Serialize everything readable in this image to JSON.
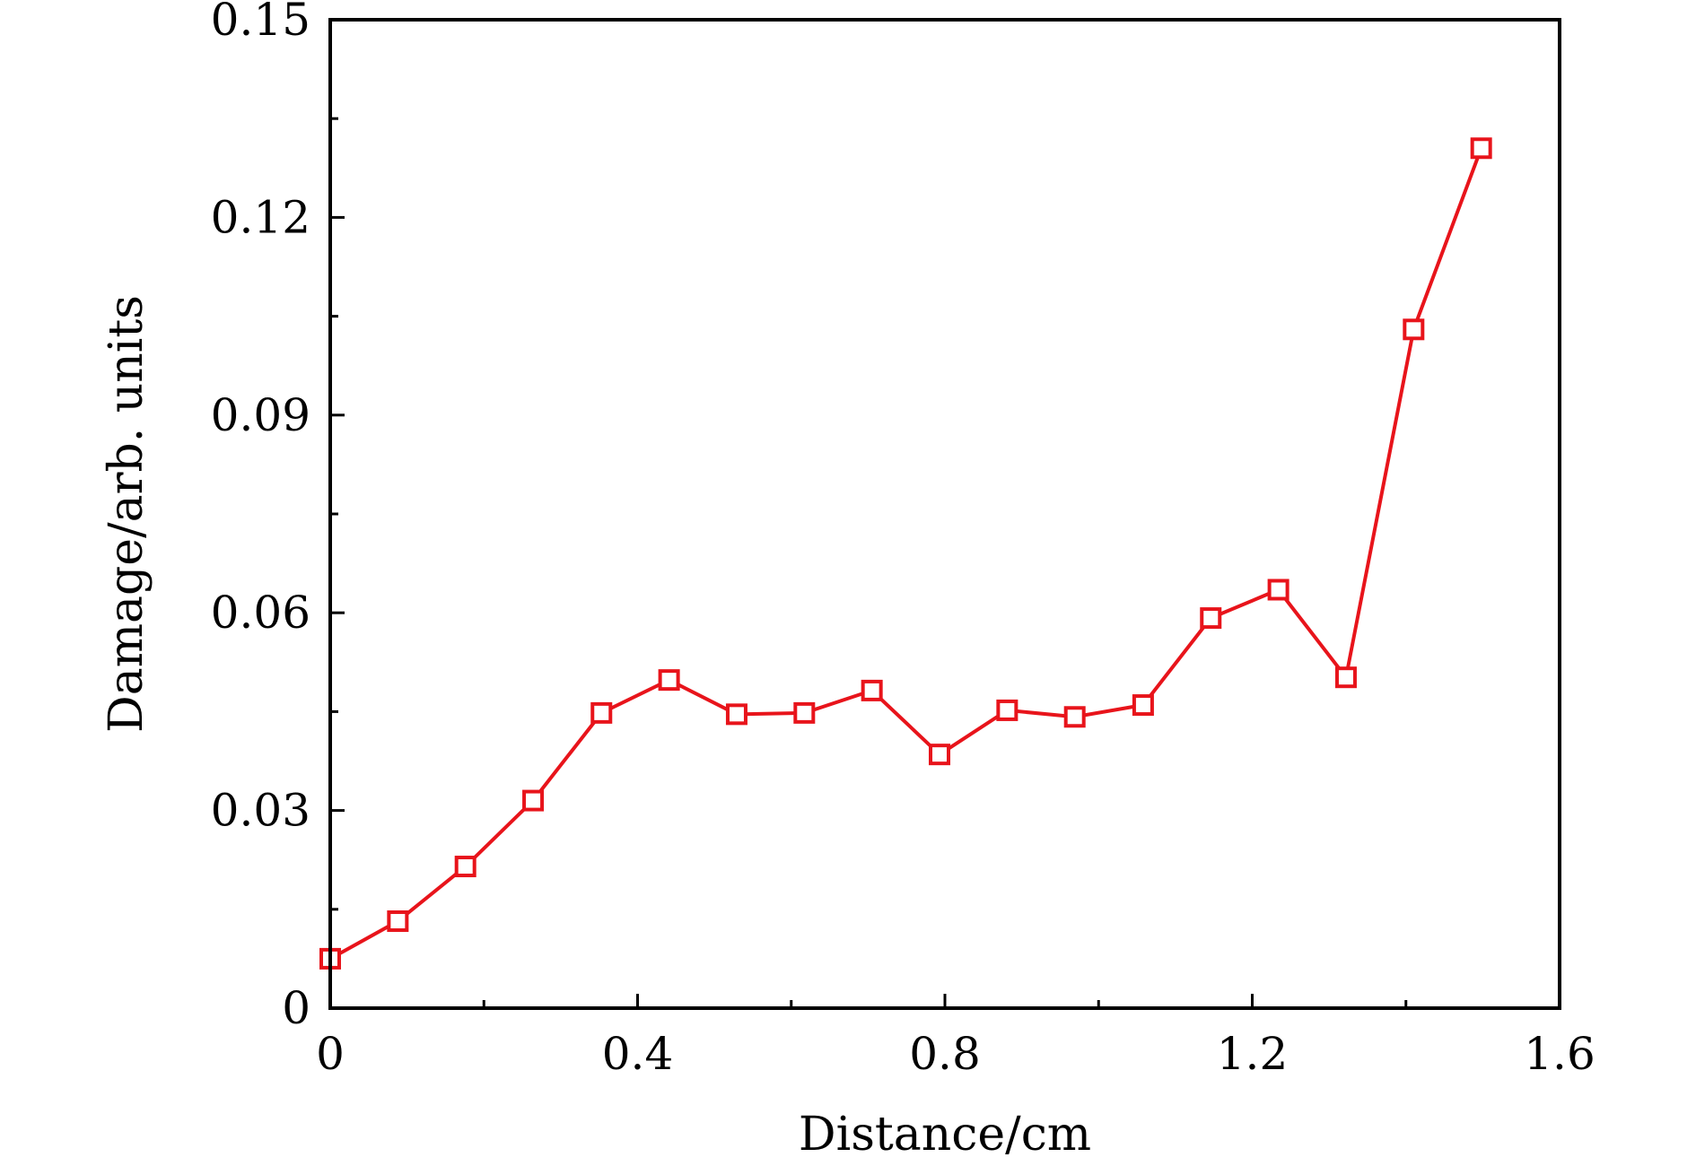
{
  "chart_data": {
    "type": "line",
    "title": "",
    "xlabel": "Distance/cm",
    "ylabel": "Damage/arb. units",
    "xlim": [
      0,
      1.6
    ],
    "ylim": [
      0,
      0.15
    ],
    "x_ticks": [
      "0",
      "0.4",
      "0.8",
      "1.2",
      "1.6"
    ],
    "y_ticks": [
      "0",
      "0.03",
      "0.06",
      "0.09",
      "0.12",
      "0.15"
    ],
    "grid": false,
    "legend": "none",
    "marker": "open-square",
    "series": [
      {
        "color": "#e8141b",
        "x": [
          0.0,
          0.088,
          0.176,
          0.264,
          0.353,
          0.441,
          0.529,
          0.617,
          0.705,
          0.793,
          0.881,
          0.969,
          1.058,
          1.146,
          1.234,
          1.322,
          1.41,
          1.498
        ],
        "y": [
          0.0075,
          0.0132,
          0.0215,
          0.0315,
          0.0448,
          0.0498,
          0.0446,
          0.0448,
          0.0482,
          0.0385,
          0.0452,
          0.0442,
          0.046,
          0.0592,
          0.0635,
          0.0502,
          0.103,
          0.1305
        ]
      }
    ]
  }
}
